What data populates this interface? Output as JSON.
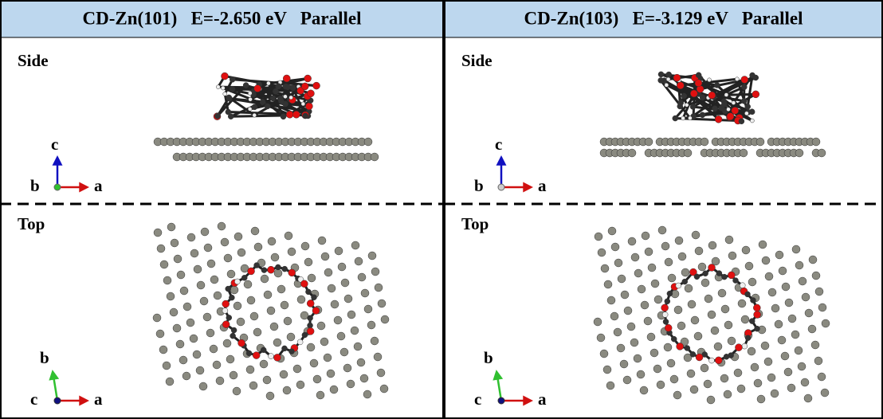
{
  "panels": [
    {
      "title": "CD-Zn(101)   E=-2.650 eV   Parallel",
      "views": [
        {
          "label": "Side",
          "axes": {
            "up": "c",
            "origin": "b",
            "right": "a"
          }
        },
        {
          "label": "Top",
          "axes": {
            "up": "b",
            "origin": "c",
            "right": "a"
          }
        }
      ]
    },
    {
      "title": "CD-Zn(103)   E=-3.129 eV   Parallel",
      "views": [
        {
          "label": "Side",
          "axes": {
            "up": "c",
            "origin": "b",
            "right": "a"
          }
        },
        {
          "label": "Top",
          "axes": {
            "up": "b",
            "origin": "c",
            "right": "a"
          }
        }
      ]
    }
  ]
}
